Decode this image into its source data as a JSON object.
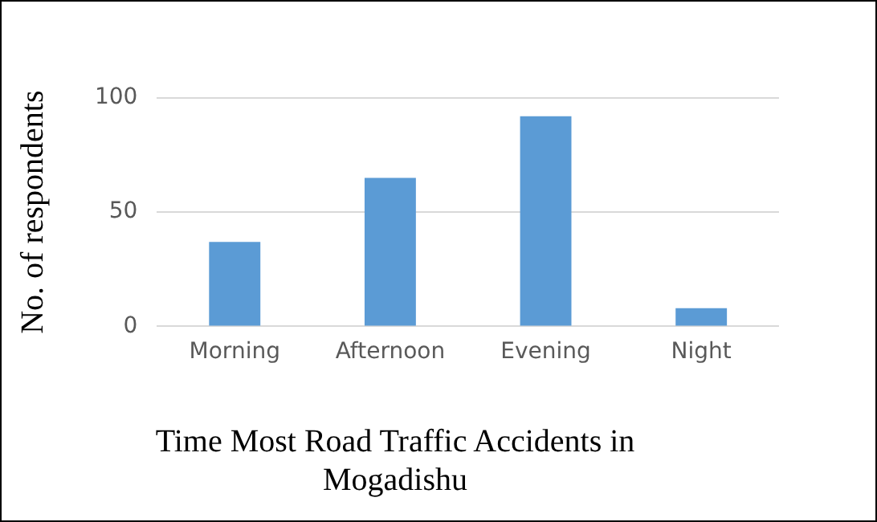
{
  "chart_data": {
    "type": "bar",
    "title": "Time Most Road Traffic Accidents in Mogadishu",
    "ylabel": "No. of respondents",
    "categories": [
      "Morning",
      "Afternoon",
      "Evening",
      "Night"
    ],
    "values": [
      37,
      65,
      92,
      8
    ],
    "color": "#5b9bd5",
    "ylim": [
      0,
      100
    ],
    "yticks": [
      0,
      50,
      100
    ],
    "grid": "y"
  }
}
